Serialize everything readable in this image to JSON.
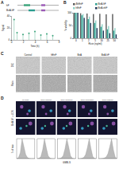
{
  "panel_labels": [
    "A",
    "B",
    "C",
    "D"
  ],
  "panel_a_schematic": {
    "labels": [
      "hF",
      "BirA-hF"
    ]
  },
  "chart_data": [
    {
      "type": "lollipop",
      "x": [
        0.5,
        1,
        2,
        3,
        4,
        5,
        6,
        7
      ],
      "values": [
        34,
        12,
        9,
        11,
        14,
        8,
        10,
        7
      ],
      "color": "#3aa37a",
      "marker": "circle",
      "xlim": [
        0,
        8
      ],
      "xticks": [
        0,
        2,
        4,
        6,
        8
      ],
      "ylim": [
        0,
        40
      ],
      "yticks": [
        0,
        20,
        40
      ],
      "xlabel": "Time (h)",
      "ylabel": "Signal"
    },
    {
      "type": "bar",
      "categories": [
        "0",
        "1",
        "2",
        "5",
        "10",
        "25",
        "50"
      ],
      "series": [
        {
          "name": "ΔhEnF",
          "color": "#5a5a5a",
          "values": [
            100,
            98,
            97,
            95,
            96,
            94,
            95
          ]
        },
        {
          "name": "BirA-hF",
          "color": "#2a9d8f",
          "values": [
            100,
            90,
            75,
            60,
            45,
            35,
            30
          ]
        },
        {
          "name": "hEnF",
          "color": "#8fd3c7",
          "values": [
            100,
            95,
            85,
            70,
            55,
            48,
            40
          ]
        },
        {
          "name": "BirA-nhF",
          "color": "#1d3557",
          "values": [
            100,
            80,
            60,
            40,
            30,
            20,
            15
          ]
        }
      ],
      "ylim": [
        0,
        100
      ],
      "yticks": [
        0,
        50,
        100
      ],
      "xlabel": "Ricin (ng/ml)",
      "ylabel": "% viability",
      "legend": "top"
    },
    {
      "type": "area",
      "x": [
        0,
        1,
        2,
        3,
        4,
        5,
        6,
        7,
        8,
        9,
        10
      ],
      "values": [
        0,
        5,
        30,
        100,
        60,
        20,
        5,
        1,
        0,
        0,
        0
      ],
      "color": "#8c8c8c",
      "xlim": [
        0,
        10
      ],
      "ylim": [
        0,
        100
      ],
      "tick_labels": false
    },
    {
      "type": "area",
      "x": [
        0,
        1,
        2,
        3,
        4,
        5,
        6,
        7,
        8,
        9,
        10
      ],
      "values": [
        0,
        2,
        10,
        45,
        100,
        55,
        15,
        3,
        0,
        0,
        0
      ],
      "color": "#8c8c8c",
      "xlim": [
        0,
        10
      ],
      "ylim": [
        0,
        100
      ],
      "tick_labels": false
    },
    {
      "type": "area",
      "x": [
        0,
        1,
        2,
        3,
        4,
        5,
        6,
        7,
        8,
        9,
        10
      ],
      "values": [
        0,
        1,
        4,
        15,
        50,
        100,
        60,
        15,
        2,
        0,
        0
      ],
      "color": "#8c8c8c",
      "xlim": [
        0,
        10
      ],
      "ylim": [
        0,
        100
      ],
      "tick_labels": false
    },
    {
      "type": "area",
      "x": [
        0,
        1,
        2,
        3,
        4,
        5,
        6,
        7,
        8,
        9,
        10
      ],
      "values": [
        0,
        0,
        2,
        6,
        20,
        55,
        100,
        50,
        10,
        1,
        0
      ],
      "color": "#8c8c8c",
      "xlim": [
        0,
        10
      ],
      "ylim": [
        0,
        100
      ],
      "tick_labels": false
    },
    {
      "type": "area",
      "x": [
        0,
        1,
        2,
        3,
        4,
        5,
        6,
        7,
        8,
        9,
        10
      ],
      "values": [
        0,
        0,
        1,
        3,
        8,
        25,
        60,
        100,
        45,
        8,
        0
      ],
      "color": "#8c8c8c",
      "xlim": [
        0,
        10
      ],
      "ylim": [
        0,
        100
      ],
      "tick_labels": false
    }
  ],
  "panel_c": {
    "columns": [
      "Control",
      "hEnF",
      "BirA",
      "BirA-hF"
    ],
    "rows": [
      "DIC",
      "Ricin"
    ]
  },
  "panel_d": {
    "columns": [
      "no Ricin",
      "Ricin [1ng/ml]",
      "Ricin [10ng/ml]",
      "Ricin [100ng/ml]",
      "Ricin [1µg/ml]"
    ],
    "row_label": "BirA-hF + LDS",
    "hist_xlabel": "GMB-S",
    "hist_ylabel": "% of max"
  }
}
